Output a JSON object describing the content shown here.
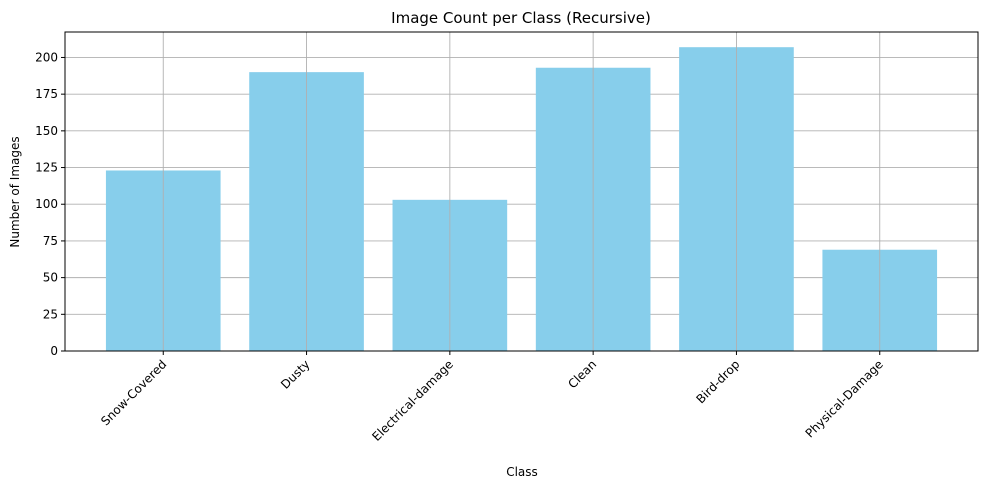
{
  "chart_data": {
    "type": "bar",
    "title": "Image Count per Class (Recursive)",
    "xlabel": "Class",
    "ylabel": "Number of Images",
    "categories": [
      "Snow-Covered",
      "Dusty",
      "Electrical-damage",
      "Clean",
      "Bird-drop",
      "Physical-Damage"
    ],
    "values": [
      123,
      190,
      103,
      193,
      207,
      69
    ],
    "ylim": [
      0,
      217.35
    ],
    "yticks": [
      0,
      25,
      50,
      75,
      100,
      125,
      150,
      175,
      200
    ],
    "ytick_labels": [
      "0",
      "25",
      "50",
      "75",
      "100",
      "125",
      "150",
      "175",
      "200"
    ],
    "grid": true,
    "bar_color": "#87ceeb",
    "x_tick_rotation_deg": 45
  }
}
